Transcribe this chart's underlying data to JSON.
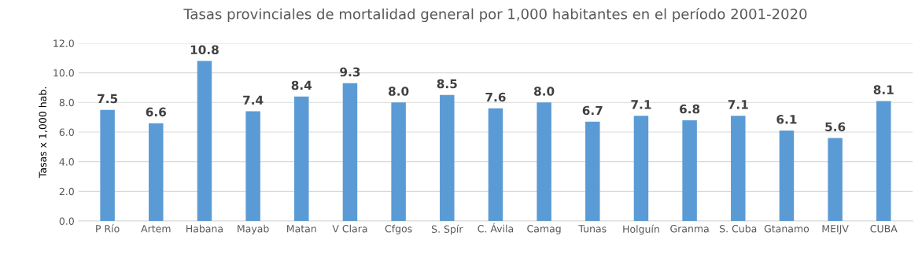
{
  "chart_data": {
    "type": "bar",
    "title": "Tasas provinciales de mortalidad general por 1,000 habitantes en el período 2001-2020",
    "ylabel": "Tasas x 1,000 hab.",
    "categories": [
      "P Río",
      "Artem",
      "Habana",
      "Mayab",
      "Matan",
      "V Clara",
      "Cfgos",
      "S. Spír",
      "C. Ávila",
      "Camag",
      "Tunas",
      "Holguín",
      "Granma",
      "S. Cuba",
      "Gtanamo",
      "MEIJV",
      "CUBA"
    ],
    "values": [
      7.5,
      6.6,
      10.8,
      7.4,
      8.4,
      9.3,
      8.0,
      8.5,
      7.6,
      8.0,
      6.7,
      7.1,
      6.8,
      7.1,
      6.1,
      5.6,
      8.1
    ],
    "value_labels": [
      "7.5",
      "6.6",
      "10.8",
      "7.4",
      "8.4",
      "9.3",
      "8.0",
      "8.5",
      "7.6",
      "8.0",
      "6.7",
      "7.1",
      "6.8",
      "7.1",
      "6.1",
      "5.6",
      "8.1"
    ],
    "color": "#5b9bd5",
    "ylim": [
      0,
      12
    ],
    "yticks": [
      {
        "value": 0,
        "label": "0.0"
      },
      {
        "value": 2,
        "label": "2.0"
      },
      {
        "value": 4,
        "label": "4.0"
      },
      {
        "value": 6,
        "label": "6.0"
      },
      {
        "value": 8,
        "label": "8.0"
      },
      {
        "value": 10,
        "label": "10.0"
      },
      {
        "value": 12,
        "label": "12.0"
      }
    ],
    "grid": "y",
    "legend": false
  }
}
